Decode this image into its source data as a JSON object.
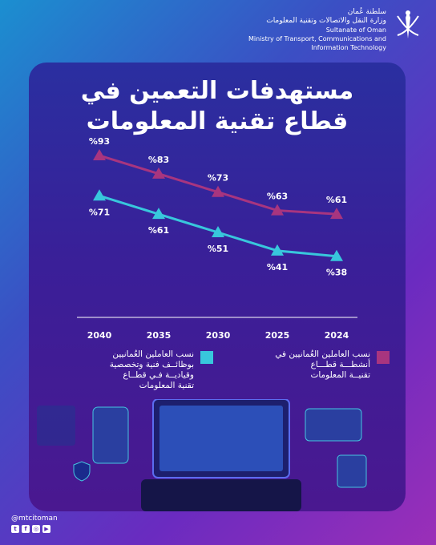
{
  "header": {
    "ar_line1": "سلطنة عُمان",
    "ar_line2": "وزارة النقل والاتصالات وتقنية المعلومات",
    "en_line1": "Sultanate of Oman",
    "en_line2": "Ministry of Transport, Communications and",
    "en_line3": "Information Technology"
  },
  "title_line1": "مستهدفات التعمين في",
  "title_line2": "قطاع تقنية المعلومات",
  "chart_data": {
    "type": "line",
    "x": [
      "2024",
      "2025",
      "2030",
      "2035",
      "2040"
    ],
    "series": [
      {
        "name": "نسب العاملين العُمانيين في أنشطة قطاع تقنية المعلومات",
        "values": [
          61,
          63,
          73,
          83,
          93
        ],
        "labels": [
          "%61",
          "%63",
          "%73",
          "%83",
          "%93"
        ],
        "color": "#a8357f"
      },
      {
        "name": "نسب العاملين العُمانيين بوظائف فنية وتخصصية وقيادية في قطاع تقنية المعلومات",
        "values": [
          38,
          41,
          51,
          61,
          71
        ],
        "labels": [
          "%38",
          "%41",
          "%51",
          "%61",
          "%71"
        ],
        "color": "#38c7dc"
      }
    ],
    "x_direction": "right-to-left",
    "ylim": [
      30,
      100
    ]
  },
  "legend": {
    "item1_line1": "نسب العاملين العُمانيين في",
    "item1_line2": "أنشطـــة قطـــاع",
    "item1_line3": "تقنيــة المعلومات",
    "item2_line1": "نسب العاملين العُمانيين",
    "item2_line2": "بوظائــف فنية وتخصصية",
    "item2_line3": "وقياديــة فـي قطــاع",
    "item2_line4": "تقنية المعلومات"
  },
  "footer": {
    "handle": "@mtcitoman"
  },
  "colors": {
    "bg_start": "#1b8fd0",
    "bg_end": "#9b2fb8",
    "series1": "#a8357f",
    "series2": "#38c7dc"
  }
}
